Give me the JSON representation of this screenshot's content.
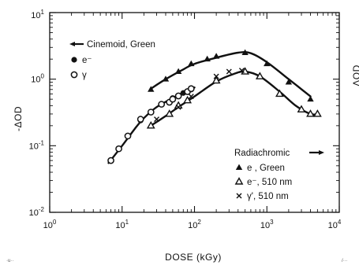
{
  "chart_data": {
    "type": "line",
    "xscale": "log",
    "yscale": "log",
    "xlim": [
      1,
      10000
    ],
    "ylim": [
      0.01,
      10
    ],
    "xlabel": "DOSE   (kGy)",
    "ylabel": "-ΔOD",
    "right_edge_label": "ΔOD",
    "x_ticks": [
      {
        "base": "10",
        "exp": "0"
      },
      {
        "base": "10",
        "exp": "1"
      },
      {
        "base": "10",
        "exp": "2"
      },
      {
        "base": "10",
        "exp": "3"
      },
      {
        "base": "10",
        "exp": "4"
      }
    ],
    "y_ticks": [
      {
        "base": "10",
        "exp": "-2"
      },
      {
        "base": "10",
        "exp": "-1"
      },
      {
        "base": "10",
        "exp": "0"
      },
      {
        "base": "10",
        "exp": "1"
      }
    ],
    "legend_cinemoid": {
      "title": "Cinemoid, Green",
      "entries": [
        {
          "marker": "filled-circle",
          "label": "e⁻"
        },
        {
          "marker": "open-circle",
          "label": "γ"
        }
      ]
    },
    "legend_radiachromic": {
      "title": "Radiachromic",
      "entries": [
        {
          "marker": "filled-triangle",
          "label": "e , Green"
        },
        {
          "marker": "open-triangle",
          "label": "e⁻, 510 nm"
        },
        {
          "marker": "cross",
          "label": "γ', 510 nm"
        }
      ]
    },
    "series": [
      {
        "id": "cin_e",
        "marker": "filled-circle",
        "points": [
          [
            7,
            0.06
          ],
          [
            9,
            0.09
          ],
          [
            12,
            0.14
          ],
          [
            18,
            0.24
          ],
          [
            25,
            0.32
          ],
          [
            35,
            0.42
          ],
          [
            50,
            0.52
          ],
          [
            70,
            0.62
          ],
          [
            90,
            0.7
          ]
        ]
      },
      {
        "id": "cin_g",
        "marker": "open-circle",
        "points": [
          [
            7,
            0.06
          ],
          [
            9,
            0.09
          ],
          [
            12,
            0.14
          ],
          [
            18,
            0.25
          ],
          [
            25,
            0.32
          ],
          [
            35,
            0.42
          ],
          [
            45,
            0.45
          ],
          [
            50,
            0.5
          ],
          [
            60,
            0.56
          ],
          [
            80,
            0.65
          ],
          [
            90,
            0.72
          ]
        ]
      },
      {
        "id": "rad_e_green",
        "marker": "filled-triangle",
        "points": [
          [
            25,
            0.7
          ],
          [
            40,
            1.0
          ],
          [
            60,
            1.3
          ],
          [
            90,
            1.7
          ],
          [
            150,
            2.0
          ],
          [
            200,
            2.2
          ],
          [
            500,
            2.5
          ],
          [
            1000,
            1.7
          ],
          [
            2000,
            0.9
          ],
          [
            4000,
            0.5
          ]
        ]
      },
      {
        "id": "rad_e_510",
        "marker": "open-triangle",
        "points": [
          [
            25,
            0.2
          ],
          [
            45,
            0.3
          ],
          [
            60,
            0.4
          ],
          [
            80,
            0.48
          ],
          [
            200,
            0.95
          ],
          [
            500,
            1.3
          ],
          [
            800,
            1.1
          ],
          [
            1500,
            0.6
          ],
          [
            3000,
            0.35
          ],
          [
            4000,
            0.3
          ],
          [
            5000,
            0.3
          ]
        ]
      },
      {
        "id": "rad_g_510",
        "marker": "cross",
        "points": [
          [
            30,
            0.25
          ],
          [
            60,
            0.38
          ],
          [
            90,
            0.55
          ],
          [
            200,
            1.1
          ],
          [
            300,
            1.3
          ],
          [
            450,
            1.35
          ]
        ]
      }
    ],
    "curves": [
      {
        "id": "curve_cinemoid",
        "points": [
          [
            6.5,
            0.055
          ],
          [
            10,
            0.1
          ],
          [
            15,
            0.18
          ],
          [
            20,
            0.26
          ],
          [
            30,
            0.38
          ],
          [
            50,
            0.52
          ],
          [
            80,
            0.68
          ],
          [
            100,
            0.75
          ]
        ]
      },
      {
        "id": "curve_radia_green",
        "points": [
          [
            25,
            0.72
          ],
          [
            40,
            1.0
          ],
          [
            70,
            1.4
          ],
          [
            100,
            1.7
          ],
          [
            200,
            2.1
          ],
          [
            400,
            2.5
          ],
          [
            600,
            2.45
          ],
          [
            1000,
            1.8
          ],
          [
            2000,
            1.0
          ],
          [
            4000,
            0.55
          ]
        ]
      },
      {
        "id": "curve_radia_510",
        "points": [
          [
            25,
            0.2
          ],
          [
            40,
            0.28
          ],
          [
            60,
            0.38
          ],
          [
            100,
            0.55
          ],
          [
            200,
            0.92
          ],
          [
            350,
            1.2
          ],
          [
            500,
            1.3
          ],
          [
            800,
            1.1
          ],
          [
            1500,
            0.65
          ],
          [
            2500,
            0.4
          ],
          [
            4000,
            0.3
          ],
          [
            5200,
            0.3
          ]
        ]
      }
    ]
  },
  "corner_notes": {
    "bottom_left": "·u··",
    "bottom_right": "/···"
  }
}
